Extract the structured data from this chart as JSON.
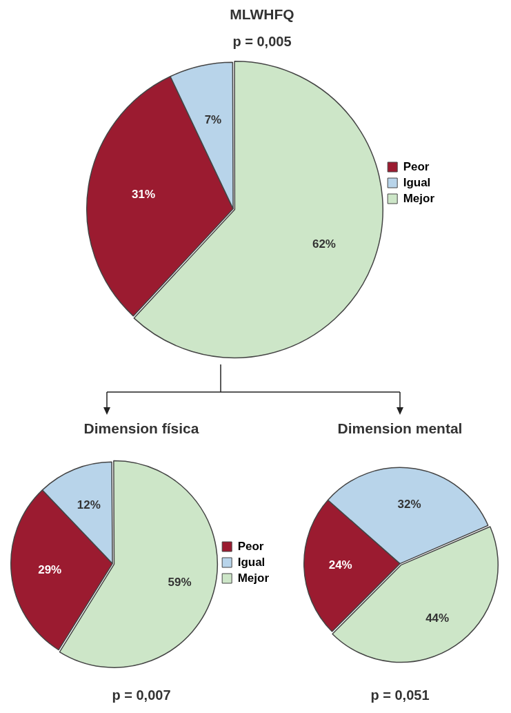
{
  "chart_data": [
    {
      "type": "pie",
      "title": "MLWHFQ",
      "subtitle": "p = 0,005",
      "categories": [
        "Peor",
        "Igual",
        "Mejor"
      ],
      "values": [
        31,
        7,
        62
      ],
      "colors": [
        "#9b1b30",
        "#b8d4ea",
        "#cde6c8"
      ],
      "value_labels": [
        "31%",
        "7%",
        "62%"
      ],
      "legend": "right"
    },
    {
      "type": "pie",
      "title": "Dimension física",
      "subtitle": "p = 0,007",
      "categories": [
        "Peor",
        "Igual",
        "Mejor"
      ],
      "values": [
        29,
        12,
        59
      ],
      "colors": [
        "#9b1b30",
        "#b8d4ea",
        "#cde6c8"
      ],
      "value_labels": [
        "29%",
        "12%",
        "59%"
      ],
      "legend": "right"
    },
    {
      "type": "pie",
      "title": "Dimension mental",
      "subtitle": "p = 0,051",
      "categories": [
        null,
        null,
        null
      ],
      "values": [
        24,
        32,
        44
      ],
      "colors": [
        "#9b1b30",
        "#b8d4ea",
        "#cde6c8"
      ],
      "value_labels": [
        "24%",
        "32%",
        "44%"
      ]
    }
  ]
}
